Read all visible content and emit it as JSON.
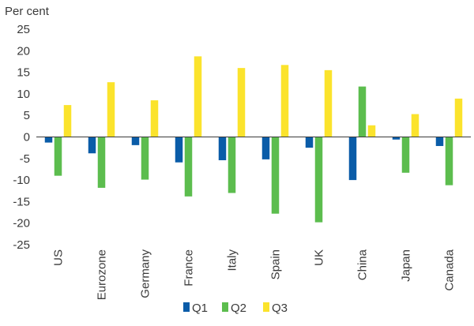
{
  "chart_data": {
    "type": "bar",
    "unit_label": "Per cent",
    "categories": [
      "US",
      "Eurozone",
      "Germany",
      "France",
      "Italy",
      "Spain",
      "UK",
      "China",
      "Japan",
      "Canada"
    ],
    "series": [
      {
        "name": "Q1",
        "color": "#0a5ca8",
        "values": [
          -1.3,
          -3.8,
          -1.9,
          -5.9,
          -5.4,
          -5.2,
          -2.5,
          -10.0,
          -0.6,
          -2.1
        ]
      },
      {
        "name": "Q2",
        "color": "#5cbd4e",
        "values": [
          -9.0,
          -11.8,
          -9.9,
          -13.8,
          -13.0,
          -17.8,
          -19.8,
          11.7,
          -8.3,
          -11.2
        ]
      },
      {
        "name": "Q3",
        "color": "#fbe32c",
        "values": [
          7.4,
          12.7,
          8.5,
          18.7,
          16.0,
          16.7,
          15.5,
          2.7,
          5.3,
          8.9
        ]
      }
    ],
    "ylim": [
      -25,
      25
    ],
    "yticks": [
      "25",
      "20",
      "15",
      "10",
      "5",
      "0",
      "-5",
      "-10",
      "-15",
      "-20",
      "-25"
    ],
    "grid": false,
    "legend_position": "bottom-center"
  }
}
